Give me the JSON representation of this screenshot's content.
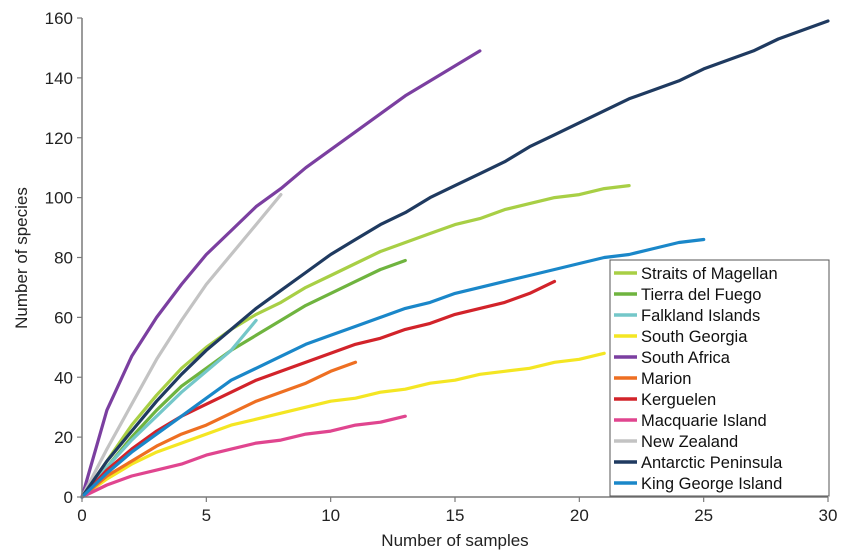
{
  "chart_data": {
    "type": "line",
    "title": "",
    "xlabel": "Number of samples",
    "ylabel": "Number of species",
    "xlim": [
      0,
      30
    ],
    "ylim": [
      0,
      160
    ],
    "x_ticks": [
      "0",
      "5",
      "10",
      "15",
      "20",
      "25",
      "30"
    ],
    "y_ticks": [
      "0",
      "20",
      "40",
      "60",
      "80",
      "100",
      "120",
      "140",
      "160"
    ],
    "grid": false,
    "legend_position": "bottom-right",
    "series": [
      {
        "name": "Straits of Magellan",
        "color": "#a8cf45",
        "points": [
          [
            0,
            0
          ],
          [
            1,
            12
          ],
          [
            2,
            24
          ],
          [
            3,
            34
          ],
          [
            4,
            43
          ],
          [
            5,
            50
          ],
          [
            6,
            56
          ],
          [
            7,
            61
          ],
          [
            8,
            65
          ],
          [
            9,
            70
          ],
          [
            10,
            74
          ],
          [
            11,
            78
          ],
          [
            12,
            82
          ],
          [
            13,
            85
          ],
          [
            14,
            88
          ],
          [
            15,
            91
          ],
          [
            16,
            93
          ],
          [
            17,
            96
          ],
          [
            18,
            98
          ],
          [
            19,
            100
          ],
          [
            20,
            101
          ],
          [
            21,
            103
          ],
          [
            22,
            104
          ]
        ]
      },
      {
        "name": "Tierra del Fuego",
        "color": "#6fb43f",
        "points": [
          [
            0,
            0
          ],
          [
            1,
            10
          ],
          [
            2,
            20
          ],
          [
            3,
            29
          ],
          [
            4,
            37
          ],
          [
            5,
            43
          ],
          [
            6,
            49
          ],
          [
            7,
            54
          ],
          [
            8,
            59
          ],
          [
            9,
            64
          ],
          [
            10,
            68
          ],
          [
            11,
            72
          ],
          [
            12,
            76
          ],
          [
            13,
            79
          ]
        ]
      },
      {
        "name": "Falkland Islands",
        "color": "#74c7c9",
        "points": [
          [
            0,
            0
          ],
          [
            1,
            10
          ],
          [
            2,
            19
          ],
          [
            3,
            27
          ],
          [
            4,
            35
          ],
          [
            5,
            42
          ],
          [
            6,
            49
          ],
          [
            7,
            59
          ]
        ]
      },
      {
        "name": "South Georgia",
        "color": "#f4e623",
        "points": [
          [
            0,
            0
          ],
          [
            1,
            6
          ],
          [
            2,
            11
          ],
          [
            3,
            15
          ],
          [
            4,
            18
          ],
          [
            5,
            21
          ],
          [
            6,
            24
          ],
          [
            7,
            26
          ],
          [
            8,
            28
          ],
          [
            9,
            30
          ],
          [
            10,
            32
          ],
          [
            11,
            33
          ],
          [
            12,
            35
          ],
          [
            13,
            36
          ],
          [
            14,
            38
          ],
          [
            15,
            39
          ],
          [
            16,
            41
          ],
          [
            17,
            42
          ],
          [
            18,
            43
          ],
          [
            19,
            45
          ],
          [
            20,
            46
          ],
          [
            21,
            48
          ]
        ]
      },
      {
        "name": "South Africa",
        "color": "#7b3fa0",
        "points": [
          [
            0,
            0
          ],
          [
            1,
            29
          ],
          [
            2,
            47
          ],
          [
            3,
            60
          ],
          [
            4,
            71
          ],
          [
            5,
            81
          ],
          [
            6,
            89
          ],
          [
            7,
            97
          ],
          [
            8,
            103
          ],
          [
            9,
            110
          ],
          [
            10,
            116
          ],
          [
            11,
            122
          ],
          [
            12,
            128
          ],
          [
            13,
            134
          ],
          [
            14,
            139
          ],
          [
            15,
            144
          ],
          [
            16,
            149
          ]
        ]
      },
      {
        "name": "Marion",
        "color": "#ee6f22",
        "points": [
          [
            0,
            0
          ],
          [
            1,
            7
          ],
          [
            2,
            12
          ],
          [
            3,
            17
          ],
          [
            4,
            21
          ],
          [
            5,
            24
          ],
          [
            6,
            28
          ],
          [
            7,
            32
          ],
          [
            8,
            35
          ],
          [
            9,
            38
          ],
          [
            10,
            42
          ],
          [
            11,
            45
          ]
        ]
      },
      {
        "name": "Kerguelen",
        "color": "#d2232a",
        "points": [
          [
            0,
            0
          ],
          [
            1,
            9
          ],
          [
            2,
            16
          ],
          [
            3,
            22
          ],
          [
            4,
            27
          ],
          [
            5,
            31
          ],
          [
            6,
            35
          ],
          [
            7,
            39
          ],
          [
            8,
            42
          ],
          [
            9,
            45
          ],
          [
            10,
            48
          ],
          [
            11,
            51
          ],
          [
            12,
            53
          ],
          [
            13,
            56
          ],
          [
            14,
            58
          ],
          [
            15,
            61
          ],
          [
            16,
            63
          ],
          [
            17,
            65
          ],
          [
            18,
            68
          ],
          [
            19,
            72
          ]
        ]
      },
      {
        "name": "Macquarie Island",
        "color": "#e0458f",
        "points": [
          [
            0,
            0
          ],
          [
            1,
            4
          ],
          [
            2,
            7
          ],
          [
            3,
            9
          ],
          [
            4,
            11
          ],
          [
            5,
            14
          ],
          [
            6,
            16
          ],
          [
            7,
            18
          ],
          [
            8,
            19
          ],
          [
            9,
            21
          ],
          [
            10,
            22
          ],
          [
            11,
            24
          ],
          [
            12,
            25
          ],
          [
            13,
            27
          ]
        ]
      },
      {
        "name": "New Zealand",
        "color": "#c3c3c3",
        "points": [
          [
            0,
            0
          ],
          [
            1,
            16
          ],
          [
            2,
            31
          ],
          [
            3,
            46
          ],
          [
            4,
            59
          ],
          [
            5,
            71
          ],
          [
            6,
            81
          ],
          [
            7,
            91
          ],
          [
            8,
            101
          ]
        ]
      },
      {
        "name": "Antarctic Peninsula",
        "color": "#1f3a60",
        "points": [
          [
            0,
            0
          ],
          [
            1,
            12
          ],
          [
            2,
            22
          ],
          [
            3,
            32
          ],
          [
            4,
            41
          ],
          [
            5,
            49
          ],
          [
            6,
            56
          ],
          [
            7,
            63
          ],
          [
            8,
            69
          ],
          [
            9,
            75
          ],
          [
            10,
            81
          ],
          [
            11,
            86
          ],
          [
            12,
            91
          ],
          [
            13,
            95
          ],
          [
            14,
            100
          ],
          [
            15,
            104
          ],
          [
            16,
            108
          ],
          [
            17,
            112
          ],
          [
            18,
            117
          ],
          [
            19,
            121
          ],
          [
            20,
            125
          ],
          [
            21,
            129
          ],
          [
            22,
            133
          ],
          [
            23,
            136
          ],
          [
            24,
            139
          ],
          [
            25,
            143
          ],
          [
            26,
            146
          ],
          [
            27,
            149
          ],
          [
            28,
            153
          ],
          [
            29,
            156
          ],
          [
            30,
            159
          ]
        ]
      },
      {
        "name": "King George Island",
        "color": "#1a87c9",
        "points": [
          [
            0,
            0
          ],
          [
            1,
            8
          ],
          [
            2,
            15
          ],
          [
            3,
            21
          ],
          [
            4,
            27
          ],
          [
            5,
            33
          ],
          [
            6,
            39
          ],
          [
            7,
            43
          ],
          [
            8,
            47
          ],
          [
            9,
            51
          ],
          [
            10,
            54
          ],
          [
            11,
            57
          ],
          [
            12,
            60
          ],
          [
            13,
            63
          ],
          [
            14,
            65
          ],
          [
            15,
            68
          ],
          [
            16,
            70
          ],
          [
            17,
            72
          ],
          [
            18,
            74
          ],
          [
            19,
            76
          ],
          [
            20,
            78
          ],
          [
            21,
            80
          ],
          [
            22,
            81
          ],
          [
            23,
            83
          ],
          [
            24,
            85
          ],
          [
            25,
            86
          ]
        ]
      }
    ]
  }
}
